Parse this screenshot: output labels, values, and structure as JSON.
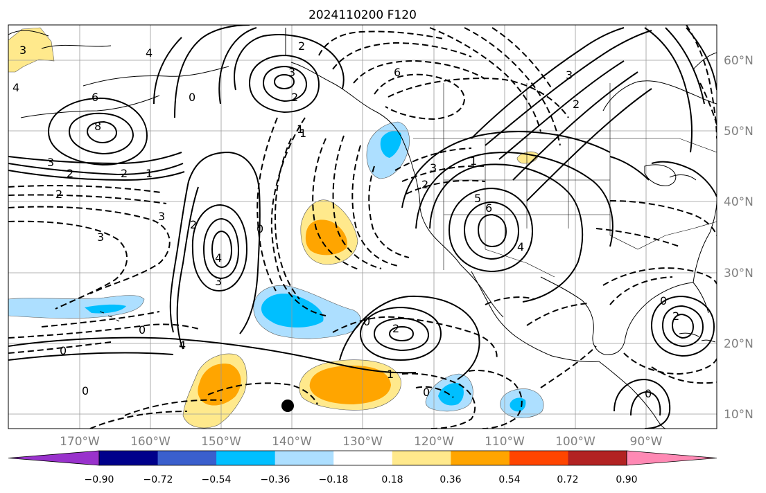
{
  "title": "2024110200 F120",
  "lat_labels": [
    "60°N",
    "50°N",
    "40°N",
    "30°N",
    "20°N",
    "10°N"
  ],
  "lon_labels": [
    "170°W",
    "160°W",
    "150°W",
    "140°W",
    "130°W",
    "120°W",
    "110°W",
    "100°W",
    "90°W"
  ],
  "colorbar": {
    "colors": [
      "#9932CC",
      "#00008B",
      "#3A5FCD",
      "#00BFFF",
      "#ADDFFF",
      "#FFFFFF",
      "#FFE98C",
      "#FFA500",
      "#FF4500",
      "#B22222",
      "#FF89B4"
    ],
    "ticks": [
      "−0.90",
      "−0.72",
      "−0.54",
      "−0.36",
      "−0.18",
      "0.18",
      "0.36",
      "0.54",
      "0.72",
      "0.90"
    ]
  },
  "contour_labels": [
    {
      "text": "6"
    },
    {
      "text": "8"
    },
    {
      "text": "3"
    },
    {
      "text": "2"
    },
    {
      "text": "1"
    },
    {
      "text": "2"
    },
    {
      "text": "3"
    },
    {
      "text": "2"
    },
    {
      "text": "0"
    },
    {
      "text": "4"
    },
    {
      "text": "3"
    },
    {
      "text": "1"
    },
    {
      "text": "0"
    },
    {
      "text": "6"
    },
    {
      "text": "4"
    },
    {
      "text": "3"
    },
    {
      "text": "2"
    },
    {
      "text": "0"
    },
    {
      "text": "5"
    },
    {
      "text": "6"
    },
    {
      "text": "4"
    },
    {
      "text": "3"
    },
    {
      "text": "2"
    },
    {
      "text": "1"
    },
    {
      "text": "0"
    },
    {
      "text": "2"
    },
    {
      "text": "1"
    },
    {
      "text": "0"
    },
    {
      "text": "0"
    },
    {
      "text": "0"
    },
    {
      "text": "4"
    },
    {
      "text": "2"
    },
    {
      "text": "0"
    },
    {
      "text": "0"
    },
    {
      "text": "3"
    },
    {
      "text": "1"
    },
    {
      "text": "2"
    },
    {
      "text": "2"
    },
    {
      "text": "3"
    },
    {
      "text": "2"
    },
    {
      "text": "4"
    },
    {
      "text": "3"
    }
  ]
}
